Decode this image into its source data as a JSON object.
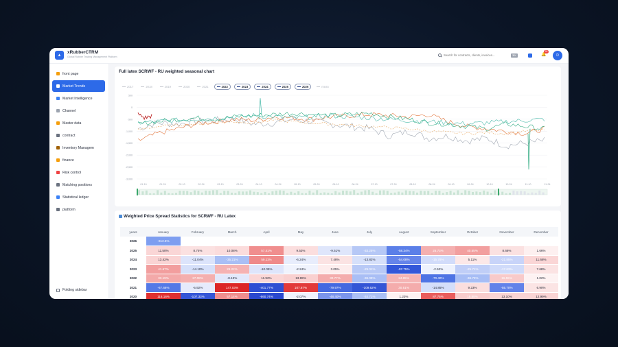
{
  "app": {
    "name": "xRubberCTRM",
    "subtitle": "Global Rubber Trading Management Platform",
    "logo_letter": "▲"
  },
  "search": {
    "placeholder": "Search for contracts, clients, invoices...",
    "shortcut": "⌘K"
  },
  "header": {
    "notification_count": "99",
    "avatar_letter": "D"
  },
  "sidebar": {
    "items": [
      {
        "label": "front page",
        "icon": "home-icon",
        "color": "#f59e0b"
      },
      {
        "label": "Market Trends",
        "icon": "chart-icon",
        "color": "#ffffff",
        "active": true
      },
      {
        "label": "Market Intelligence",
        "icon": "globe-icon",
        "color": "#3b82f6"
      },
      {
        "label": "Channel",
        "icon": "trend-icon",
        "color": "#9ca3af"
      },
      {
        "label": "Master data",
        "icon": "calendar-icon",
        "color": "#f59e0b"
      },
      {
        "label": "contract",
        "icon": "pencil-icon",
        "color": "#6b7280"
      },
      {
        "label": "Inventory Managem",
        "icon": "box-icon",
        "color": "#a16207"
      },
      {
        "label": "finance",
        "icon": "money-icon",
        "color": "#f59e0b"
      },
      {
        "label": "Risk control",
        "icon": "shield-icon",
        "color": "#ef4444"
      },
      {
        "label": "Matching positions",
        "icon": "link-icon",
        "color": "#6b7280"
      },
      {
        "label": "Statistical ledger",
        "icon": "ledger-icon",
        "color": "#3b82f6"
      },
      {
        "label": "platform",
        "icon": "gear-icon",
        "color": "#6b7280"
      }
    ],
    "fold_label": "Folding sidebar"
  },
  "seasonal_chart": {
    "title": "Full latex SCRWF - RU weighted seasonal chart",
    "legend": [
      {
        "label": "2017",
        "on": false,
        "color": "#c9ccd3"
      },
      {
        "label": "2018",
        "on": false,
        "color": "#c9ccd3"
      },
      {
        "label": "2019",
        "on": false,
        "color": "#c9ccd3"
      },
      {
        "label": "2020",
        "on": false,
        "color": "#c9ccd3"
      },
      {
        "label": "2021",
        "on": false,
        "color": "#c9ccd3"
      },
      {
        "label": "2022",
        "on": true,
        "color": "#1e3a8a"
      },
      {
        "label": "2023",
        "on": true,
        "color": "#1e3a8a"
      },
      {
        "label": "2024",
        "on": true,
        "color": "#1e3a8a"
      },
      {
        "label": "2025",
        "on": true,
        "color": "#1e3a8a"
      },
      {
        "label": "2026",
        "on": true,
        "color": "#1e3a8a"
      },
      {
        "label": "mean",
        "on": false,
        "color": "#c9ccd3"
      }
    ],
    "y_ticks": [
      "500",
      "0",
      "-500",
      "-1,000",
      "-1,500",
      "-2,000",
      "-2,500",
      "-3,000"
    ],
    "x_ticks": [
      "01-10",
      "01-24",
      "02-10",
      "02-24",
      "03-10",
      "03-24",
      "04-10",
      "04-24",
      "05-10",
      "05-24",
      "06-10",
      "06-24",
      "07-10",
      "07-24",
      "08-10",
      "08-24",
      "09-10",
      "09-24",
      "10-10",
      "10-24",
      "11-10",
      "11-24"
    ],
    "series_colors": {
      "s2022": "#9ca3af",
      "s2023": "#e06b2e",
      "s2024": "#23a67a",
      "s2025": "#3fb6a5",
      "s2026": "#b91c1c",
      "mean": "#e8a35a"
    }
  },
  "chart_data": {
    "type": "line",
    "title": "Full latex SCRWF - RU weighted seasonal chart",
    "xlabel": "",
    "ylabel": "",
    "ylim": [
      -3000,
      500
    ],
    "x_ticks": [
      "01-10",
      "01-24",
      "02-10",
      "02-24",
      "03-10",
      "03-24",
      "04-10",
      "04-24",
      "05-10",
      "05-24",
      "06-10",
      "06-24",
      "07-10",
      "07-24",
      "08-10",
      "08-24",
      "09-10",
      "09-24",
      "10-10",
      "10-24",
      "11-10",
      "11-24"
    ],
    "series": [
      {
        "name": "2022",
        "values": [
          -900,
          -650,
          -700,
          -600,
          -550,
          -500,
          -700,
          -650,
          -500,
          -600,
          -700,
          -800,
          -900,
          -1200,
          -1000,
          -1300,
          -1200,
          -1400,
          -1300,
          -1600,
          -1500,
          -1400
        ]
      },
      {
        "name": "2023",
        "values": [
          -1400,
          -1100,
          -900,
          -700,
          -600,
          -500,
          -550,
          -400,
          -450,
          -500,
          -400,
          -350,
          -300,
          -350,
          -400,
          -300,
          -600,
          -800,
          -900,
          -1000,
          -1100,
          -900
        ]
      },
      {
        "name": "2024",
        "values": [
          -700,
          -600,
          -500,
          -450,
          -500,
          -400,
          -350,
          -300,
          -250,
          -300,
          -350,
          -300,
          -250,
          -400,
          -500,
          -650,
          -700,
          -800,
          -900,
          -700,
          -800,
          -900
        ]
      },
      {
        "name": "2025",
        "values": [
          -650,
          -600,
          -550,
          -500,
          -450,
          -400,
          -350,
          -400,
          -450,
          -400,
          -350,
          -400,
          -450,
          -500,
          -550,
          -600,
          -650,
          -700,
          -650,
          -600,
          -550,
          -500
        ]
      },
      {
        "name": "2026",
        "values": [
          -300,
          -450,
          -350
        ]
      },
      {
        "name": "mean",
        "values": [
          -950,
          -800,
          -750,
          -700,
          -650,
          -600,
          -650,
          -550,
          -600,
          -650,
          -700,
          -750,
          -800,
          -850,
          -900,
          -1000,
          -1050,
          -1100,
          -1050,
          -1100,
          -1000,
          -950
        ]
      }
    ]
  },
  "spread_table": {
    "title": "Weighted Price Spread Statistics for SCRWF - RU Latex",
    "headers": [
      "years",
      "January",
      "February",
      "March",
      "April",
      "May",
      "June",
      "July",
      "August",
      "September",
      "October",
      "November",
      "December"
    ],
    "rows": [
      {
        "year": "2026",
        "cells": [
          {
            "v": "-912.5%",
            "c": "#7e9ef0",
            "d": true
          },
          {
            "v": "",
            "c": "#ffffff"
          },
          {
            "v": "",
            "c": "#ffffff"
          },
          {
            "v": "",
            "c": "#ffffff"
          },
          {
            "v": "",
            "c": "#ffffff"
          },
          {
            "v": "",
            "c": "#ffffff"
          },
          {
            "v": "",
            "c": "#ffffff"
          },
          {
            "v": "",
            "c": "#ffffff"
          },
          {
            "v": "",
            "c": "#ffffff"
          },
          {
            "v": "",
            "c": "#ffffff"
          },
          {
            "v": "",
            "c": "#ffffff"
          },
          {
            "v": "",
            "c": "#ffffff"
          }
        ]
      },
      {
        "year": "2025",
        "cells": [
          {
            "v": "11.50%",
            "c": "#fad6d6"
          },
          {
            "v": "8.74%",
            "c": "#fbe1e1"
          },
          {
            "v": "10.08%",
            "c": "#fbdcdc"
          },
          {
            "v": "57.41%",
            "c": "#f08e8e",
            "d": true
          },
          {
            "v": "9.53%",
            "c": "#fbdede"
          },
          {
            "v": "-9.51%",
            "c": "#dfe6fb"
          },
          {
            "v": "-33.25%",
            "c": "#b6c8f6",
            "d": true
          },
          {
            "v": "-58.34%",
            "c": "#5b7fe8",
            "d": true
          },
          {
            "v": "25.73%",
            "c": "#f4b0b0",
            "d": true
          },
          {
            "v": "40.55%",
            "c": "#f29f9f",
            "d": true
          },
          {
            "v": "8.66%",
            "c": "#fbe1e1"
          },
          {
            "v": "1.66%",
            "c": "#fdf0f0"
          }
        ]
      },
      {
        "year": "2024",
        "cells": [
          {
            "v": "13.42%",
            "c": "#fad4d4"
          },
          {
            "v": "-11.04%",
            "c": "#dce4fb"
          },
          {
            "v": "-35.21%",
            "c": "#aabff5",
            "d": true
          },
          {
            "v": "59.11%",
            "c": "#ef8a8a",
            "d": true
          },
          {
            "v": "-6.24%",
            "c": "#e8edfc"
          },
          {
            "v": "7.48%",
            "c": "#fbe3e3"
          },
          {
            "v": "-13.82%",
            "c": "#d6e0fa"
          },
          {
            "v": "-54.08%",
            "c": "#6685ea",
            "d": true
          },
          {
            "v": "-15.78%",
            "c": "#d2dcfa",
            "d": true
          },
          {
            "v": "5.11%",
            "c": "#fce8e8"
          },
          {
            "v": "-21.85%",
            "c": "#c8d4f9",
            "d": true
          },
          {
            "v": "11.68%",
            "c": "#fad6d6"
          }
        ]
      },
      {
        "year": "2023",
        "cells": [
          {
            "v": "41.67%",
            "c": "#f29e9e",
            "d": true
          },
          {
            "v": "-14.10%",
            "c": "#d6e0fa"
          },
          {
            "v": "26.22%",
            "c": "#f5b2b2",
            "d": true
          },
          {
            "v": "-10.09%",
            "c": "#dee5fb"
          },
          {
            "v": "-2.24%",
            "c": "#f0f3fd"
          },
          {
            "v": "3.05%",
            "c": "#fdeded"
          },
          {
            "v": "-29.01%",
            "c": "#b8c9f6",
            "d": true
          },
          {
            "v": "-97.75%",
            "c": "#3357d9",
            "d": true
          },
          {
            "v": "-2.52%",
            "c": "#eef2fd"
          },
          {
            "v": "-25.71%",
            "c": "#c0cef7",
            "d": true
          },
          {
            "v": "-17.63%",
            "c": "#d0dbfa",
            "d": true
          },
          {
            "v": "7.68%",
            "c": "#fbe3e3"
          }
        ]
      },
      {
        "year": "2022",
        "cells": [
          {
            "v": "33.19%",
            "c": "#f3a9a9",
            "d": true
          },
          {
            "v": "27.08%",
            "c": "#f4afaf",
            "d": true
          },
          {
            "v": "-8.13%",
            "c": "#e2e8fb"
          },
          {
            "v": "11.92%",
            "c": "#fad6d6"
          },
          {
            "v": "13.99%",
            "c": "#f9d0d0"
          },
          {
            "v": "30.77%",
            "c": "#f4acac",
            "d": true
          },
          {
            "v": "-36.09%",
            "c": "#a9bef5",
            "d": true
          },
          {
            "v": "24.85%",
            "c": "#f5b4b4",
            "d": true
          },
          {
            "v": "-70.40%",
            "c": "#4e73e4",
            "d": true
          },
          {
            "v": "-36.73%",
            "c": "#a7bdf5",
            "d": true
          },
          {
            "v": "16.55%",
            "c": "#f8caca",
            "d": true
          },
          {
            "v": "1.02%",
            "c": "#fdf2f2"
          }
        ]
      },
      {
        "year": "2021",
        "cells": [
          {
            "v": "-67.66%",
            "c": "#5479e6",
            "d": true
          },
          {
            "v": "-5.92%",
            "c": "#e6ebfc"
          },
          {
            "v": "147.03%",
            "c": "#dc2626",
            "d": true
          },
          {
            "v": "-401.77%",
            "c": "#2f4fd3",
            "d": true
          },
          {
            "v": "107.67%",
            "c": "#e23a3a",
            "d": true
          },
          {
            "v": "-79.97%",
            "c": "#4568e0",
            "d": true
          },
          {
            "v": "-109.62%",
            "c": "#3355d6",
            "d": true
          },
          {
            "v": "30.51%",
            "c": "#f4acac",
            "d": true
          },
          {
            "v": "-14.85%",
            "c": "#d4defa"
          },
          {
            "v": "9.23%",
            "c": "#fbdede"
          },
          {
            "v": "-55.70%",
            "c": "#6282e9",
            "d": true
          },
          {
            "v": "6.90%",
            "c": "#fbe4e4"
          }
        ]
      },
      {
        "year": "2020",
        "cells": [
          {
            "v": "116.16%",
            "c": "#df3030",
            "d": true
          },
          {
            "v": "-107.33%",
            "c": "#3456d7",
            "d": true
          },
          {
            "v": "57.14%",
            "c": "#f08e8e",
            "d": true
          },
          {
            "v": "-660.74%",
            "c": "#2a48cf",
            "d": true
          },
          {
            "v": "-2.07%",
            "c": "#f0f3fd"
          },
          {
            "v": "-48.40%",
            "c": "#7b95ec",
            "d": true
          },
          {
            "v": "-34.71%",
            "c": "#abc0f5",
            "d": true
          },
          {
            "v": "1.23%",
            "c": "#fdf2f2"
          },
          {
            "v": "87.75%",
            "c": "#e95d5d",
            "d": true
          },
          {
            "v": "15.88%",
            "c": "#f9cccc",
            "d": true
          },
          {
            "v": "13.10%",
            "c": "#fad4d4"
          },
          {
            "v": "12.99%",
            "c": "#fad4d4"
          }
        ]
      }
    ]
  }
}
